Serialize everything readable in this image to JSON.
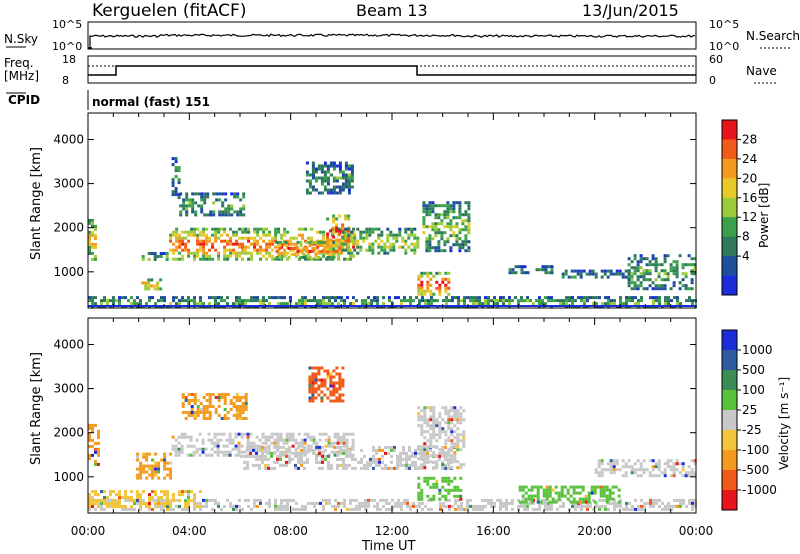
{
  "header": {
    "station": "Kerguelen (fitACF)",
    "beam": "Beam 13",
    "date": "13/Jun/2015"
  },
  "status_panels": {
    "nsky_label": "N.Sky",
    "nsky_ticks": [
      "10^5",
      "10^0"
    ],
    "nsearch_label": "N.Search",
    "nsearch_ticks": [
      "10^5",
      "10^0"
    ],
    "freq_label": "Freq.",
    "freq_unit": "[MHz]",
    "freq_ticks": [
      "18",
      "8"
    ],
    "nave_label": "Nave",
    "nave_ticks": [
      "60",
      "0"
    ],
    "cpid_label": "CPID",
    "cpid_value": "normal (fast) 151"
  },
  "chart_data": [
    {
      "type": "heatmap",
      "title": "",
      "ylabel": "Slant Range [km]",
      "xlabel": "",
      "x_ticks": [
        "00:00",
        "04:00",
        "08:00",
        "12:00",
        "16:00",
        "20:00",
        "00:00"
      ],
      "y_ticks": [
        1000,
        2000,
        3000,
        4000
      ],
      "ylim": [
        180,
        4600
      ],
      "xlim_hours": [
        0,
        24
      ],
      "colorbar": {
        "label": "Power [dB]",
        "ticks": [
          "28",
          "24",
          "20",
          "16",
          "12",
          "8",
          "4"
        ],
        "colors": [
          "#e8141b",
          "#f25a19",
          "#f39a1f",
          "#e8c92a",
          "#9acb3c",
          "#3aa14a",
          "#2f7a5a",
          "#1f4f9c",
          "#1a2dd8"
        ]
      },
      "blobs": [
        {
          "h": [
            0.0,
            0.35
          ],
          "r": [
            1300,
            2200
          ],
          "v": 0.7
        },
        {
          "h": [
            0.0,
            24.0
          ],
          "r": [
            200,
            450
          ],
          "v": 0.45
        },
        {
          "h": [
            2.1,
            2.9
          ],
          "r": [
            620,
            850
          ],
          "v": 0.75
        },
        {
          "h": [
            2.0,
            3.3
          ],
          "r": [
            1250,
            1450
          ],
          "v": 0.5
        },
        {
          "h": [
            3.2,
            10.5
          ],
          "r": [
            1300,
            2000
          ],
          "v": 0.85
        },
        {
          "h": [
            3.3,
            3.6
          ],
          "r": [
            2700,
            3600
          ],
          "v": 0.35
        },
        {
          "h": [
            3.6,
            6.2
          ],
          "r": [
            2300,
            2800
          ],
          "v": 0.4
        },
        {
          "h": [
            7.4,
            9.9
          ],
          "r": [
            1350,
            1700
          ],
          "v": 0.9
        },
        {
          "h": [
            8.6,
            10.4
          ],
          "r": [
            2800,
            3500
          ],
          "v": 0.35
        },
        {
          "h": [
            9.4,
            10.3
          ],
          "r": [
            1500,
            2300
          ],
          "v": 0.95
        },
        {
          "h": [
            10.0,
            13.0
          ],
          "r": [
            1400,
            2000
          ],
          "v": 0.55
        },
        {
          "h": [
            13.0,
            14.2
          ],
          "r": [
            500,
            1000
          ],
          "v": 0.95
        },
        {
          "h": [
            13.2,
            15.0
          ],
          "r": [
            1500,
            2600
          ],
          "v": 0.5
        },
        {
          "h": [
            16.6,
            18.3
          ],
          "r": [
            950,
            1150
          ],
          "v": 0.3
        },
        {
          "h": [
            18.7,
            21.4
          ],
          "r": [
            850,
            1050
          ],
          "v": 0.3
        },
        {
          "h": [
            21.3,
            24.0
          ],
          "r": [
            600,
            1400
          ],
          "v": 0.4
        }
      ]
    },
    {
      "type": "heatmap",
      "title": "",
      "ylabel": "Slant Range [km]",
      "xlabel": "Time UT",
      "x_ticks": [
        "00:00",
        "04:00",
        "08:00",
        "12:00",
        "16:00",
        "20:00",
        "00:00"
      ],
      "y_ticks": [
        1000,
        2000,
        3000,
        4000
      ],
      "ylim": [
        180,
        4600
      ],
      "xlim_hours": [
        0,
        24
      ],
      "colorbar": {
        "label": "Velocity [m s⁻¹]",
        "ticks": [
          "1000",
          "500",
          "100",
          "25",
          "-25",
          "-100",
          "-500",
          "-1000"
        ],
        "colors": [
          "#1a2dd8",
          "#2f5aa0",
          "#3a8e55",
          "#58c23a",
          "#c8c8c8",
          "#f2c53a",
          "#f39a1f",
          "#f25a19",
          "#e8141b"
        ]
      },
      "blobs": [
        {
          "h": [
            0.0,
            0.4
          ],
          "r": [
            1300,
            2200
          ],
          "c": "#f39a1f"
        },
        {
          "h": [
            0.0,
            24.0
          ],
          "r": [
            250,
            500
          ],
          "c": "#c8c8c8"
        },
        {
          "h": [
            0.0,
            4.5
          ],
          "r": [
            300,
            700
          ],
          "c": "#f2c53a"
        },
        {
          "h": [
            1.9,
            3.3
          ],
          "r": [
            1000,
            1550
          ],
          "c": "#f39a1f"
        },
        {
          "h": [
            3.3,
            10.5
          ],
          "r": [
            1500,
            2000
          ],
          "c": "#c8c8c8"
        },
        {
          "h": [
            3.7,
            6.2
          ],
          "r": [
            2300,
            2900
          ],
          "c": "#f39a1f"
        },
        {
          "h": [
            8.7,
            10.1
          ],
          "r": [
            2700,
            3500
          ],
          "c": "#f25a19"
        },
        {
          "h": [
            6.0,
            14.5
          ],
          "r": [
            1200,
            1700
          ],
          "c": "#c8c8c8"
        },
        {
          "h": [
            13.0,
            14.7
          ],
          "r": [
            500,
            1000
          ],
          "c": "#58c23a"
        },
        {
          "h": [
            13.0,
            14.8
          ],
          "r": [
            1200,
            2600
          ],
          "c": "#c8c8c8"
        },
        {
          "h": [
            17.0,
            21.0
          ],
          "r": [
            400,
            800
          ],
          "c": "#58c23a"
        },
        {
          "h": [
            20.0,
            24.0
          ],
          "r": [
            1000,
            1400
          ],
          "c": "#c8c8c8"
        }
      ]
    }
  ]
}
